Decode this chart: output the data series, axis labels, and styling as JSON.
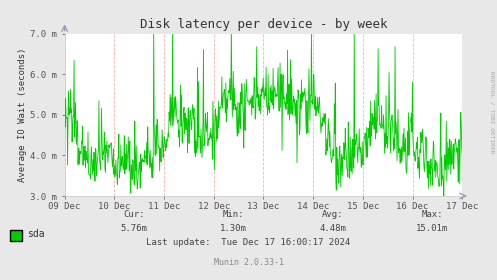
{
  "title": "Disk latency per device - by week",
  "ylabel": "Average IO Wait (seconds)",
  "fig_bg_color": "#e8e8e8",
  "plot_bg_color": "#ffffff",
  "line_color": "#00cc00",
  "grid_h_color": "#ffffff",
  "grid_v_color": "#ffb0b0",
  "ylim_low": 0.003,
  "ylim_high": 0.007,
  "yticks": [
    0.003,
    0.004,
    0.005,
    0.006,
    0.007
  ],
  "ytick_labels": [
    "3.0 m",
    "4.0 m",
    "5.0 m",
    "6.0 m",
    "7.0 m"
  ],
  "xtick_labels": [
    "09 Dec",
    "10 Dec",
    "11 Dec",
    "12 Dec",
    "13 Dec",
    "14 Dec",
    "15 Dec",
    "16 Dec",
    "17 Dec"
  ],
  "vline_color": "#ffaaaa",
  "legend_label": "sda",
  "legend_color": "#00cc00",
  "cur_label": "Cur:",
  "cur_val": "5.76m",
  "min_label": "Min:",
  "min_val": "1.30m",
  "avg_label": "Avg:",
  "avg_val": "4.48m",
  "max_label": "Max:",
  "max_val": "15.01m",
  "last_update": "Last update:  Tue Dec 17 16:00:17 2024",
  "munin_version": "Munin 2.0.33-1",
  "watermark": "RRDTOOL / TOBI OETIKER",
  "seed": 42,
  "n_points": 800
}
